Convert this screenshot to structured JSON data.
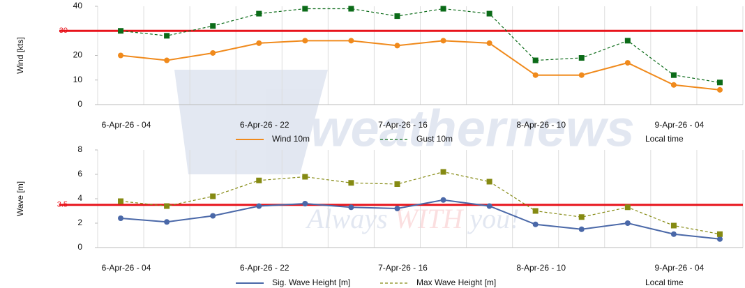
{
  "watermark": {
    "brand": "weathernews",
    "slogan": [
      "Always",
      "WITH",
      "you!"
    ]
  },
  "chart_data": [
    {
      "type": "line",
      "ylabel": "Wind [kts]",
      "xlabel": "Local time",
      "categories": [
        "6-Apr-26 - 04",
        null,
        null,
        "6-Apr-26 - 22",
        null,
        null,
        "7-Apr-26 - 16",
        null,
        null,
        "8-Apr-26 - 10",
        null,
        null,
        "9-Apr-26 - 04",
        null
      ],
      "series": [
        {
          "name": "Wind 10m",
          "color": "#f08a1c",
          "marker": "circle",
          "dash": false,
          "values": [
            20,
            18,
            21,
            25,
            26,
            26,
            24,
            26,
            25,
            12,
            12,
            17,
            8,
            6
          ]
        },
        {
          "name": "Gust 10m",
          "color": "#0b6b18",
          "marker": "square",
          "dash": true,
          "values": [
            30,
            28,
            32,
            37,
            39,
            39,
            36,
            39,
            37,
            18,
            19,
            26,
            12,
            9
          ]
        }
      ],
      "ylim": [
        0,
        40
      ],
      "yticks": [
        0,
        10,
        20,
        40
      ],
      "threshold": {
        "value": 30,
        "color": "#e8141c"
      }
    },
    {
      "type": "line",
      "ylabel": "Wave [m]",
      "xlabel": "Local time",
      "categories": [
        "6-Apr-26 - 04",
        null,
        null,
        "6-Apr-26 - 22",
        null,
        null,
        "7-Apr-26 - 16",
        null,
        null,
        "8-Apr-26 - 10",
        null,
        null,
        "9-Apr-26 - 04",
        null
      ],
      "series": [
        {
          "name": "Sig. Wave Height [m]",
          "color": "#4a68a8",
          "marker": "circle",
          "dash": false,
          "values": [
            2.4,
            2.1,
            2.6,
            3.4,
            3.6,
            3.3,
            3.2,
            3.9,
            3.4,
            1.9,
            1.5,
            2.0,
            1.1,
            0.7
          ]
        },
        {
          "name": "Max Wave Height [m]",
          "color": "#858a12",
          "marker": "square",
          "dash": true,
          "values": [
            3.8,
            3.4,
            4.2,
            5.5,
            5.8,
            5.3,
            5.2,
            6.2,
            5.4,
            3.0,
            2.5,
            3.3,
            1.8,
            1.1
          ]
        }
      ],
      "ylim": [
        0,
        8
      ],
      "yticks": [
        0,
        2,
        4,
        6,
        8
      ],
      "threshold": {
        "value": 3.5,
        "color": "#e8141c"
      }
    }
  ]
}
